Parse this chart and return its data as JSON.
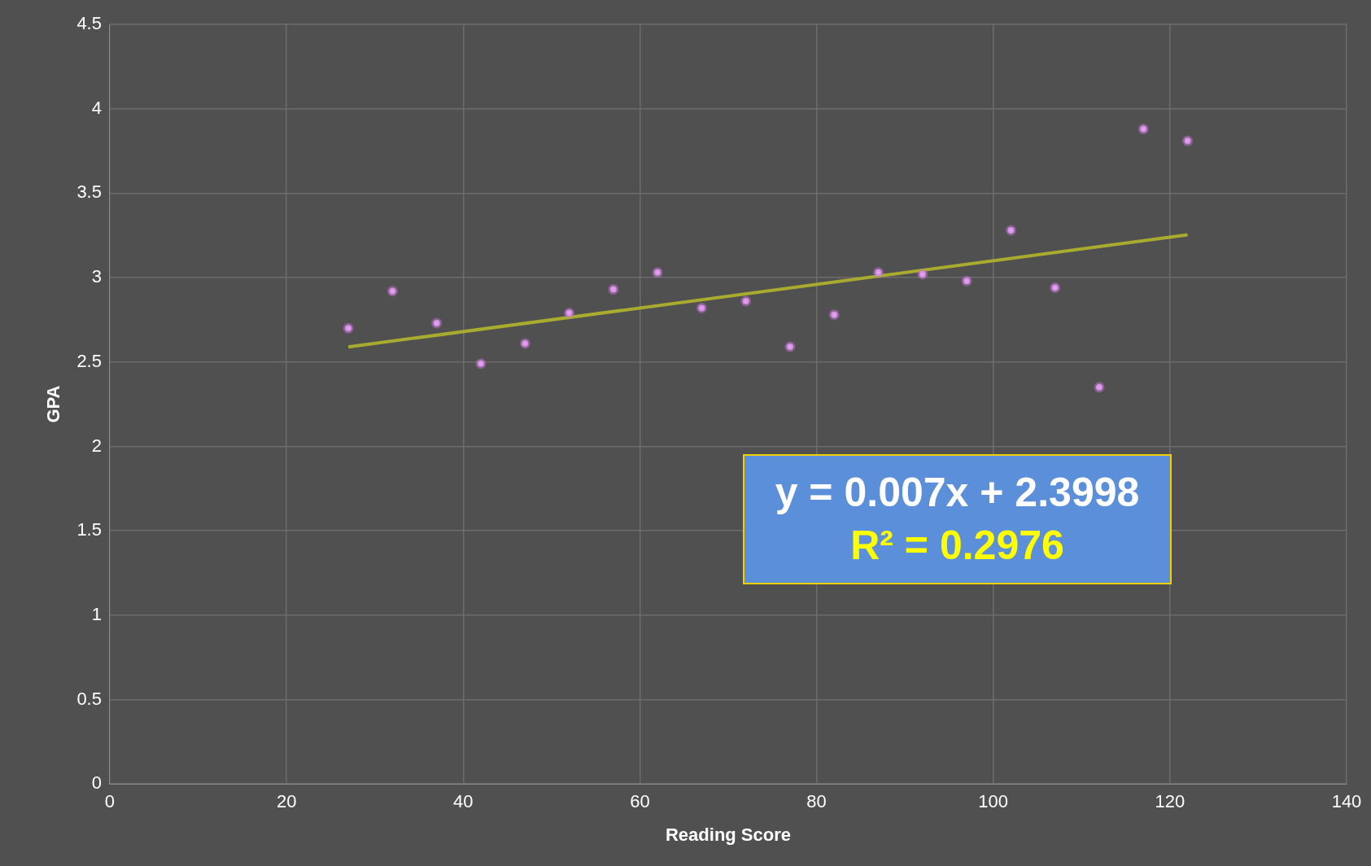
{
  "chart_data": {
    "type": "scatter",
    "xlabel": "Reading Score",
    "ylabel": "GPA",
    "xlim": [
      0,
      140
    ],
    "ylim": [
      0,
      4.5
    ],
    "xticks": [
      0,
      20,
      40,
      60,
      80,
      100,
      120,
      140
    ],
    "yticks": [
      0,
      0.5,
      1,
      1.5,
      2,
      2.5,
      3,
      3.5,
      4,
      4.5
    ],
    "grid": true,
    "marker": "circle",
    "series": [
      {
        "color": "#e8a8f0",
        "x": [
          27,
          32,
          37,
          42,
          47,
          52,
          57,
          62,
          67,
          72,
          77,
          82,
          87,
          92,
          97,
          102,
          107,
          112,
          117,
          122
        ],
        "values": [
          2.7,
          2.92,
          2.73,
          2.49,
          2.61,
          2.79,
          2.93,
          3.03,
          2.82,
          2.86,
          2.59,
          2.78,
          3.03,
          3.02,
          2.98,
          3.28,
          2.94,
          2.35,
          3.88,
          3.81
        ]
      },
      {
        "type": "line",
        "marker": "none",
        "color": "#a8ab2e",
        "x": [
          27,
          122
        ],
        "values": [
          2.589,
          3.254
        ]
      }
    ],
    "annotations": [
      "y = 0.007x + 2.3998",
      "R² = 0.2976"
    ]
  }
}
